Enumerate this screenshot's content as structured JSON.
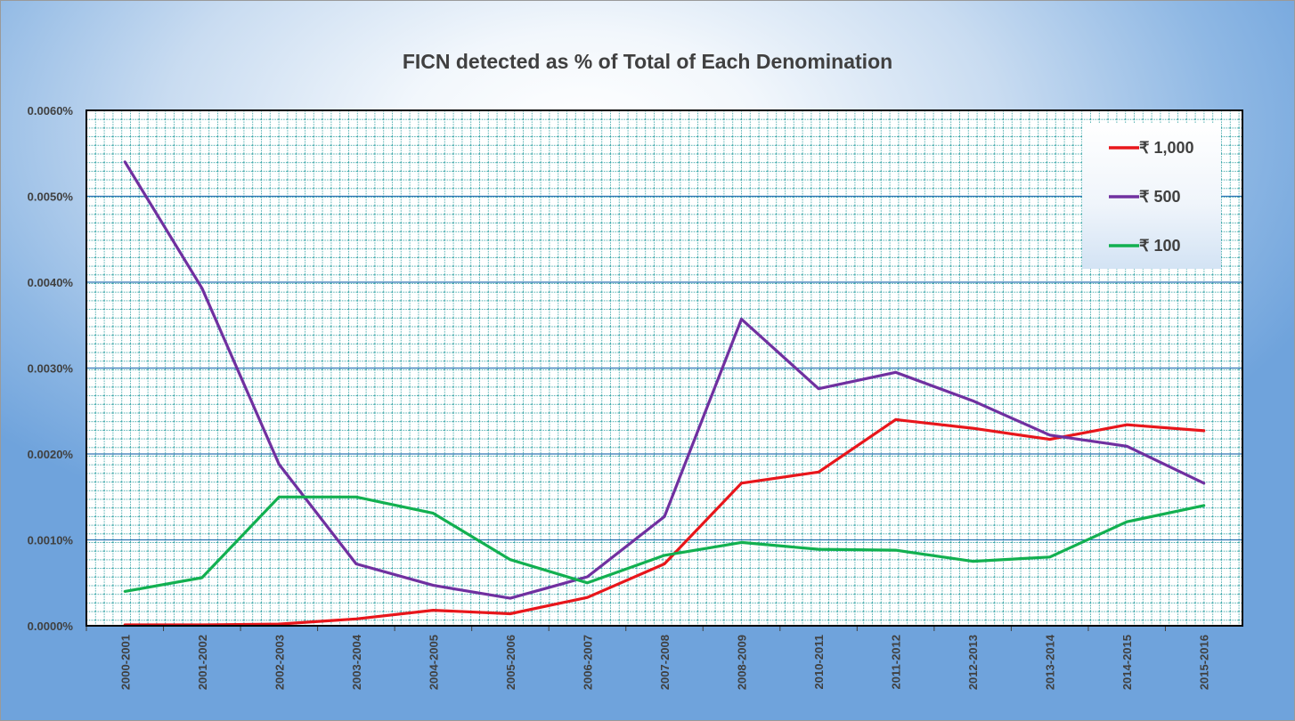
{
  "chart_data": {
    "type": "line",
    "title": "FICN  detected as % of Total of Each Denomination",
    "xlabel": "",
    "ylabel": "",
    "categories": [
      "2000-2001",
      "2001-2002",
      "2002-2003",
      "2003-2004",
      "2004-2005",
      "2005-2006",
      "2006-2007",
      "2007-2008",
      "2008-2009",
      "2010-2011",
      "2011-2012",
      "2012-2013",
      "2013-2014",
      "2014-2015",
      "2015-2016"
    ],
    "ylim": [
      0,
      0.006
    ],
    "yticks": [
      "0.0000%",
      "0.0010%",
      "0.0020%",
      "0.0030%",
      "0.0040%",
      "0.0050%",
      "0.0060%"
    ],
    "grid": true,
    "legend_position": "top-right",
    "series": [
      {
        "name": "₹ 1,000",
        "color": "#e8161b",
        "values": [
          1e-05,
          1e-05,
          2e-05,
          8e-05,
          0.00018,
          0.00014,
          0.00033,
          0.00072,
          0.00166,
          0.00179,
          0.0024,
          0.0023,
          0.00217,
          0.00234,
          0.00227
        ]
      },
      {
        "name": "₹ 500",
        "color": "#7030a0",
        "values": [
          0.0054,
          0.00393,
          0.00188,
          0.00072,
          0.00047,
          0.00032,
          0.00057,
          0.00127,
          0.00357,
          0.00276,
          0.00295,
          0.00262,
          0.00222,
          0.00209,
          0.00166
        ]
      },
      {
        "name": "₹ 100",
        "color": "#12b050",
        "values": [
          0.0004,
          0.00056,
          0.0015,
          0.0015,
          0.00131,
          0.00077,
          0.0005,
          0.00082,
          0.00097,
          0.00089,
          0.00088,
          0.00075,
          0.0008,
          0.00121,
          0.0014
        ]
      }
    ]
  }
}
